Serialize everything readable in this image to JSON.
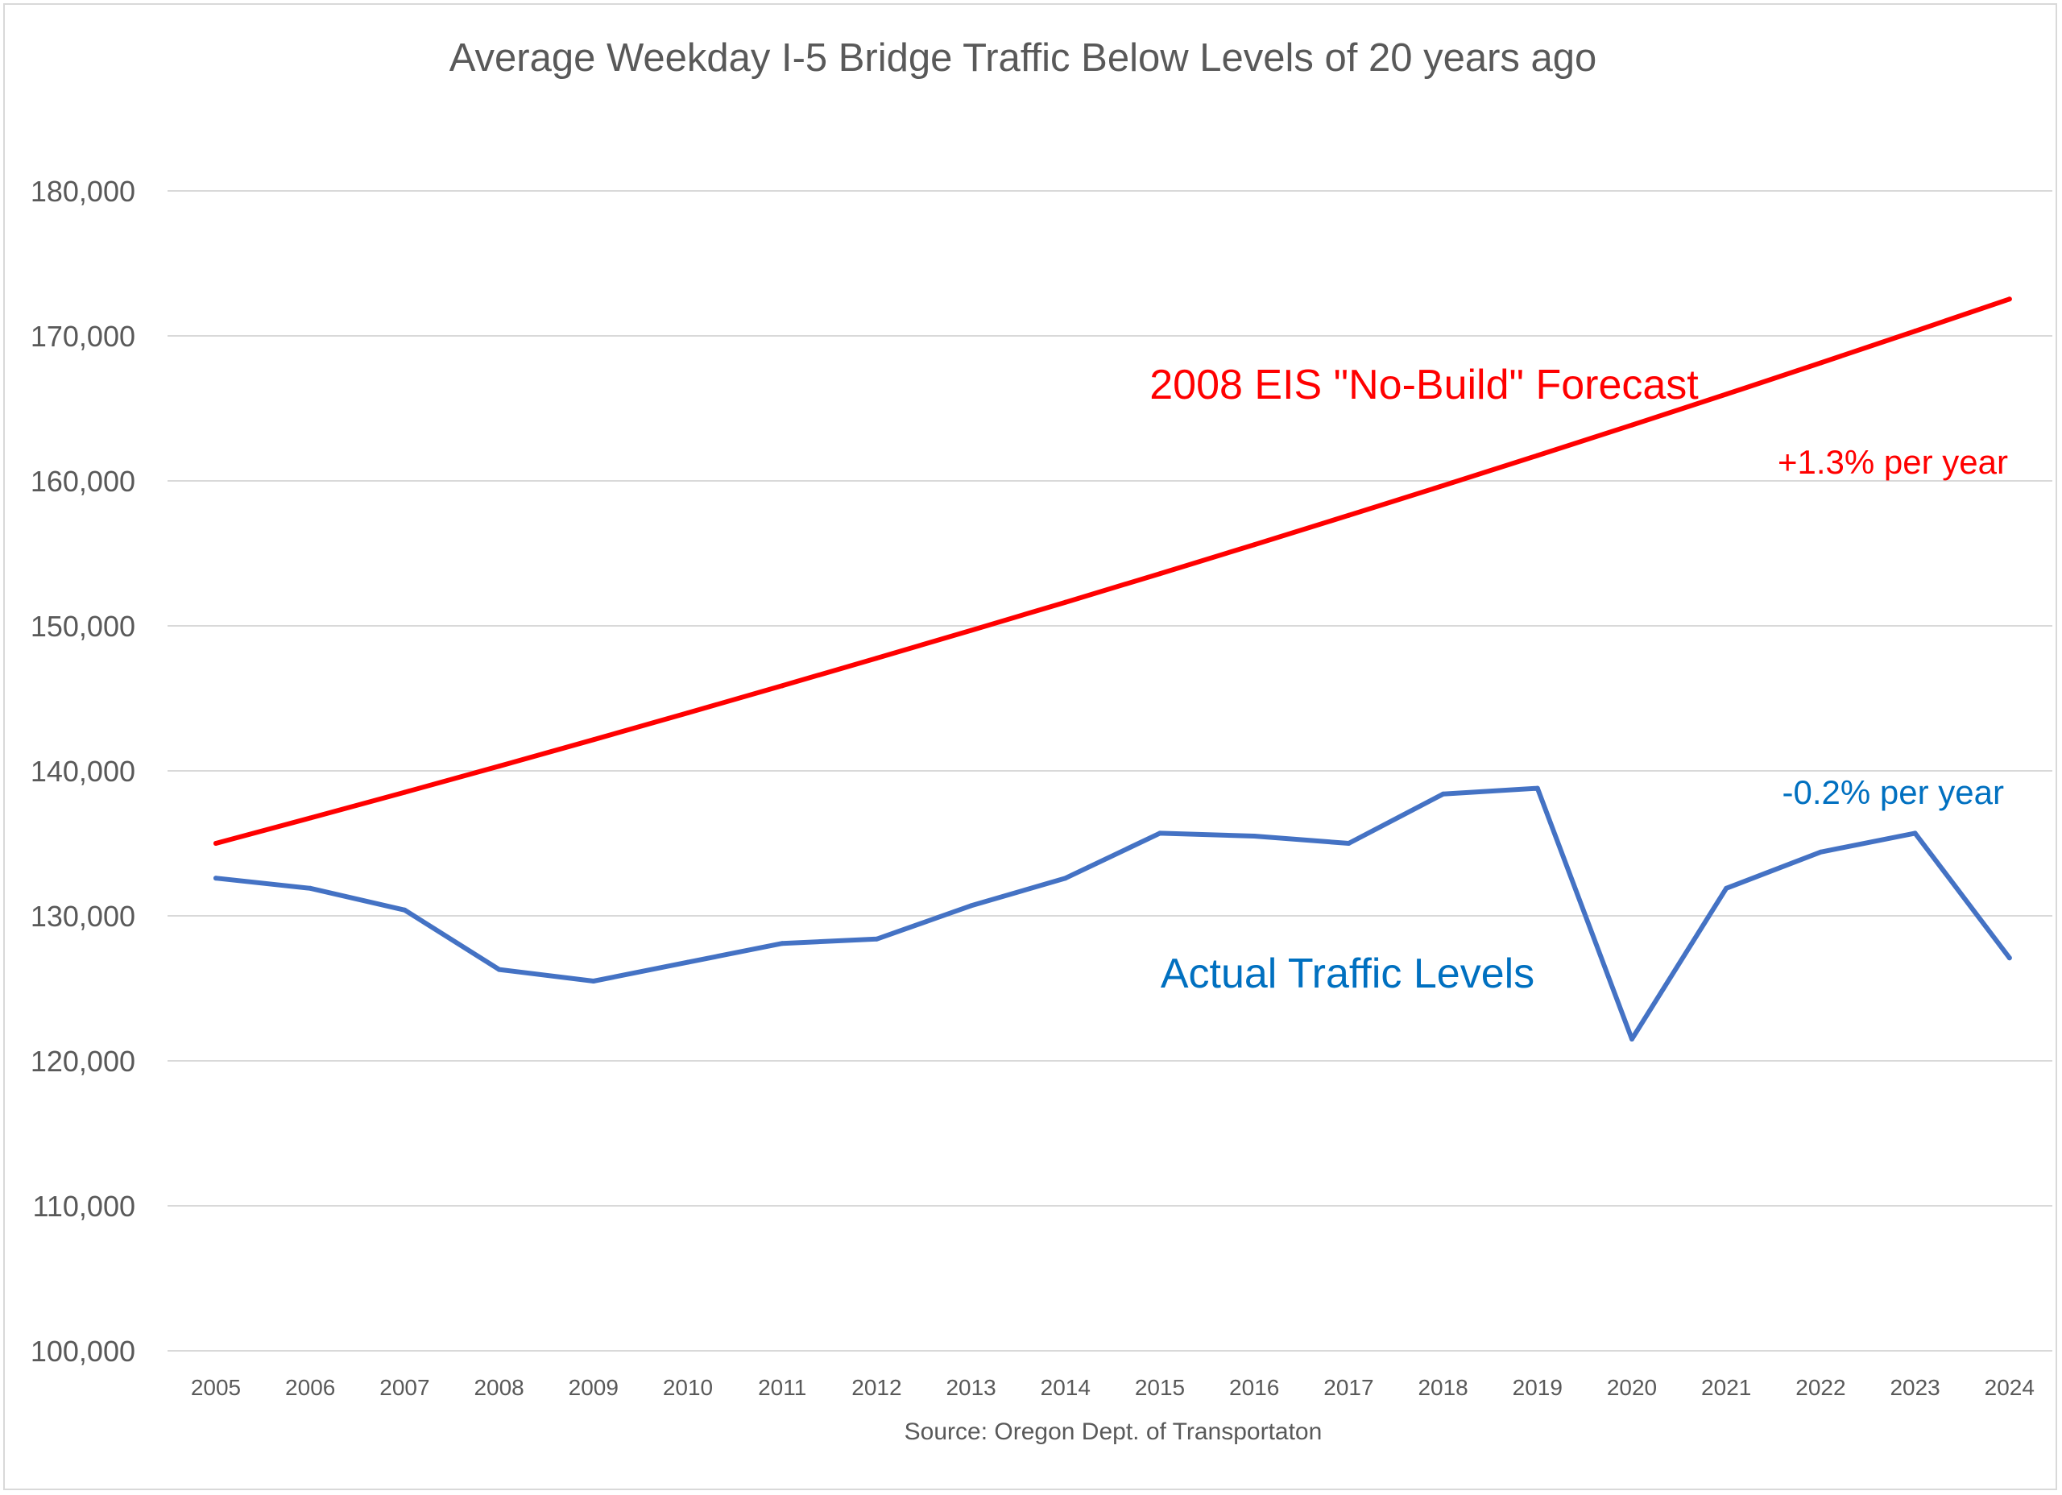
{
  "chart_data": {
    "type": "line",
    "title": "Average Weekday I-5 Bridge Traffic Below Levels of 20 years ago",
    "xlabel": "Source:  Oregon Dept. of Transportaton",
    "ylabel": "",
    "ylim": [
      100000,
      180000
    ],
    "yticks": [
      100000,
      110000,
      120000,
      130000,
      140000,
      150000,
      160000,
      170000,
      180000
    ],
    "ytick_labels": [
      "100,000",
      "110,000",
      "120,000",
      "130,000",
      "140,000",
      "150,000",
      "160,000",
      "170,000",
      "180,000"
    ],
    "categories": [
      "2005",
      "2006",
      "2007",
      "2008",
      "2009",
      "2010",
      "2011",
      "2012",
      "2013",
      "2014",
      "2015",
      "2016",
      "2017",
      "2018",
      "2019",
      "2020",
      "2021",
      "2022",
      "2023",
      "2024"
    ],
    "grid": true,
    "series": [
      {
        "name": "2008 EIS \"No-Build\" Forecast",
        "color": "#ff0000",
        "values": [
          135000,
          136750,
          138520,
          140320,
          142150,
          144000,
          145870,
          147770,
          149690,
          151630,
          153600,
          155600,
          157620,
          159670,
          161750,
          163850,
          165980,
          168140,
          170330,
          172540
        ]
      },
      {
        "name": "Actual Traffic Levels",
        "color": "#4472c4",
        "values": [
          132600,
          131900,
          130400,
          126300,
          125500,
          126800,
          128100,
          128400,
          130700,
          132600,
          135700,
          135500,
          135000,
          138400,
          138800,
          121500,
          131900,
          134400,
          135700,
          127100
        ]
      }
    ],
    "annotations": [
      {
        "text": "2008 EIS \"No-Build\" Forecast",
        "color": "#ff0000",
        "series": 0
      },
      {
        "text": "+1.3% per year",
        "color": "#ff0000",
        "series": 0
      },
      {
        "text": "-0.2% per year",
        "color": "#0070c0",
        "series": 1
      },
      {
        "text": "Actual Traffic Levels",
        "color": "#0070c0",
        "series": 1
      }
    ]
  }
}
